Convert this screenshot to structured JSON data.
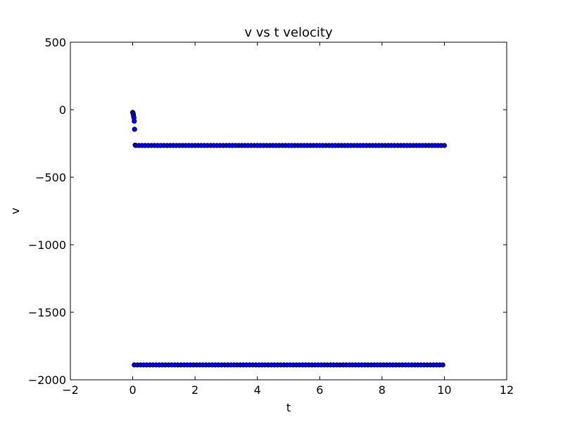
{
  "chart_data": {
    "type": "scatter",
    "title": "v vs t velocity",
    "xlabel": "t",
    "ylabel": "v",
    "xlim": [
      -2,
      12
    ],
    "ylim": [
      -2000,
      500
    ],
    "xticks": [
      -2,
      0,
      2,
      4,
      6,
      8,
      10,
      12
    ],
    "yticks": [
      500,
      0,
      -500,
      -1000,
      -1500,
      -2000
    ],
    "xtick_labels": [
      "−2",
      "0",
      "2",
      "4",
      "6",
      "8",
      "10",
      "12"
    ],
    "ytick_labels": [
      "500",
      "0",
      "−500",
      "−1000",
      "−1500",
      "−2000"
    ],
    "grid": false,
    "marker_color": "#0000ff",
    "marker_edge_color": "#000000",
    "series": [
      {
        "points": [
          [
            0.0,
            -20
          ],
          [
            0.01,
            -25
          ],
          [
            0.02,
            -35
          ],
          [
            0.03,
            -50
          ],
          [
            0.04,
            -60
          ],
          [
            0.05,
            -85
          ],
          [
            0.06,
            -145
          ],
          [
            0.08,
            -262
          ]
        ]
      },
      {
        "x_start": 0.1,
        "x_end": 10.0,
        "step": 0.1,
        "y": -265
      },
      {
        "x_start": 0.05,
        "x_end": 10.0,
        "step": 0.1,
        "y": -1890
      }
    ]
  }
}
